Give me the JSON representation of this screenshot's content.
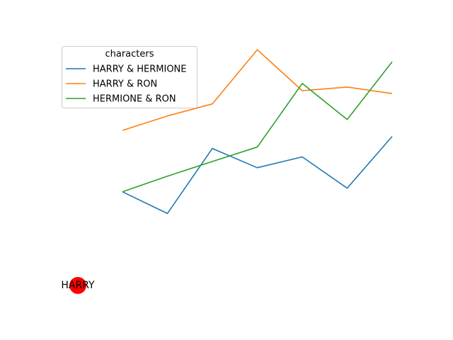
{
  "chart_data": {
    "type": "line",
    "x": [
      0,
      1,
      2,
      3,
      4,
      5,
      6
    ],
    "ylim": [
      0,
      1
    ],
    "axes_visible": false,
    "grid": false,
    "legend": {
      "title": "characters",
      "placement": "upper-left"
    },
    "series": [
      {
        "name": "HARRY & HERMIONE",
        "color": "#1f77b4",
        "values": [
          0.38,
          0.29,
          0.56,
          0.48,
          0.525,
          0.395,
          0.61
        ]
      },
      {
        "name": "HARRY & RON",
        "color": "#ff7f0e",
        "values": [
          0.635,
          0.695,
          0.745,
          0.97,
          0.8,
          0.815,
          0.788
        ]
      },
      {
        "name": "HERMIONE & RON",
        "color": "#2ca02c",
        "values": [
          0.38,
          0.445,
          0.506,
          0.566,
          0.83,
          0.68,
          0.92
        ]
      }
    ],
    "markers": [
      {
        "label": "HARRY",
        "color": "#ff0000"
      }
    ]
  }
}
